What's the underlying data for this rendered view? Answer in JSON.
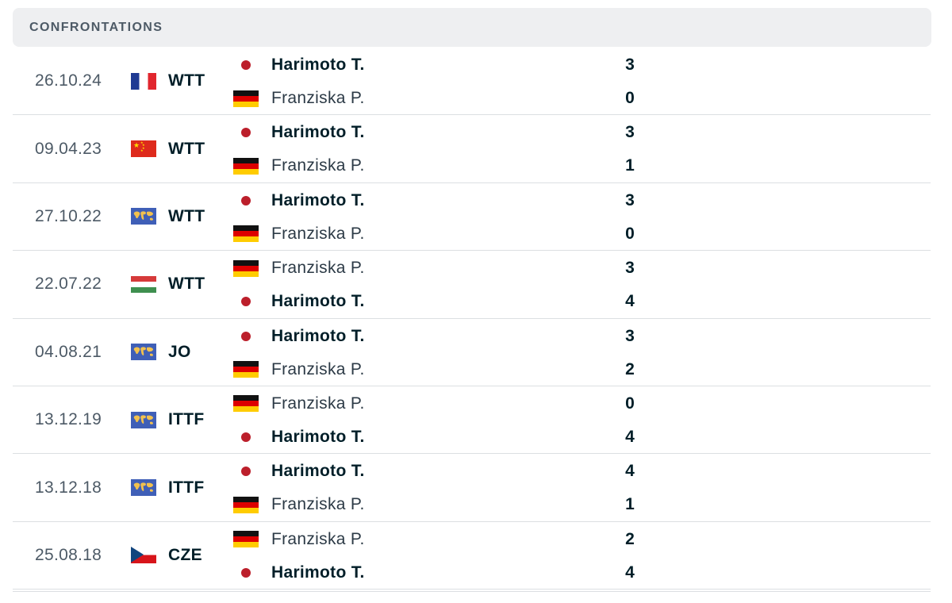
{
  "header": {
    "title": "CONFRONTATIONS"
  },
  "matches": [
    {
      "date": "26.10.24",
      "tournament": "WTT",
      "flag": "france-flag-icon",
      "p1": {
        "name": "Harimoto T.",
        "flag": "japan-flag-icon",
        "winner": true,
        "score": "3"
      },
      "p2": {
        "name": "Franziska P.",
        "flag": "germany-flag-icon",
        "winner": false,
        "score": "0"
      }
    },
    {
      "date": "09.04.23",
      "tournament": "WTT",
      "flag": "china-flag-icon",
      "p1": {
        "name": "Harimoto T.",
        "flag": "japan-flag-icon",
        "winner": true,
        "score": "3"
      },
      "p2": {
        "name": "Franziska P.",
        "flag": "germany-flag-icon",
        "winner": false,
        "score": "1"
      }
    },
    {
      "date": "27.10.22",
      "tournament": "WTT",
      "flag": "world-flag-icon",
      "p1": {
        "name": "Harimoto T.",
        "flag": "japan-flag-icon",
        "winner": true,
        "score": "3"
      },
      "p2": {
        "name": "Franziska P.",
        "flag": "germany-flag-icon",
        "winner": false,
        "score": "0"
      }
    },
    {
      "date": "22.07.22",
      "tournament": "WTT",
      "flag": "hungary-flag-icon",
      "p1": {
        "name": "Franziska P.",
        "flag": "germany-flag-icon",
        "winner": false,
        "score": "3"
      },
      "p2": {
        "name": "Harimoto T.",
        "flag": "japan-flag-icon",
        "winner": true,
        "score": "4"
      }
    },
    {
      "date": "04.08.21",
      "tournament": "JO",
      "flag": "world-flag-icon",
      "p1": {
        "name": "Harimoto T.",
        "flag": "japan-flag-icon",
        "winner": true,
        "score": "3"
      },
      "p2": {
        "name": "Franziska P.",
        "flag": "germany-flag-icon",
        "winner": false,
        "score": "2"
      }
    },
    {
      "date": "13.12.19",
      "tournament": "ITTF",
      "flag": "world-flag-icon",
      "p1": {
        "name": "Franziska P.",
        "flag": "germany-flag-icon",
        "winner": false,
        "score": "0"
      },
      "p2": {
        "name": "Harimoto T.",
        "flag": "japan-flag-icon",
        "winner": true,
        "score": "4"
      }
    },
    {
      "date": "13.12.18",
      "tournament": "ITTF",
      "flag": "world-flag-icon",
      "p1": {
        "name": "Harimoto T.",
        "flag": "japan-flag-icon",
        "winner": true,
        "score": "4"
      },
      "p2": {
        "name": "Franziska P.",
        "flag": "germany-flag-icon",
        "winner": false,
        "score": "1"
      }
    },
    {
      "date": "25.08.18",
      "tournament": "CZE",
      "flag": "czech-flag-icon",
      "p1": {
        "name": "Franziska P.",
        "flag": "germany-flag-icon",
        "winner": false,
        "score": "2"
      },
      "p2": {
        "name": "Harimoto T.",
        "flag": "japan-flag-icon",
        "winner": true,
        "score": "4"
      }
    }
  ]
}
